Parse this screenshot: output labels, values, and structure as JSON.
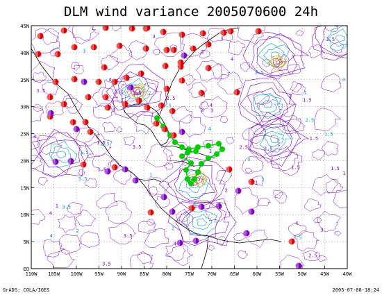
{
  "title": "DLM wind variance 2005070600 24h",
  "footer": {
    "left": "GrADS: COLA/IGES",
    "right": "2005-07-08-18:24"
  },
  "lat_labels": [
    "45N",
    "40N",
    "35N",
    "30N",
    "25N",
    "20N",
    "15N",
    "10N",
    "5N",
    "EQ"
  ],
  "lon_labels": [
    "110W",
    "105W",
    "100W",
    "95W",
    "90W",
    "85W",
    "80W",
    "75W",
    "70W",
    "65W",
    "60W",
    "55W",
    "50W",
    "45W",
    "40W"
  ],
  "colors": {
    "contour_low": "#7a00cc",
    "contour_mid": "#00a0c8",
    "contour_high": "#e0a000",
    "track": "#00cc00",
    "obs_red": "#dd0000",
    "obs_purple": "#8000c0"
  },
  "contour_value_labels": [
    "1.5",
    "2",
    "2.5",
    "3",
    "3.5",
    "1",
    "4"
  ]
}
